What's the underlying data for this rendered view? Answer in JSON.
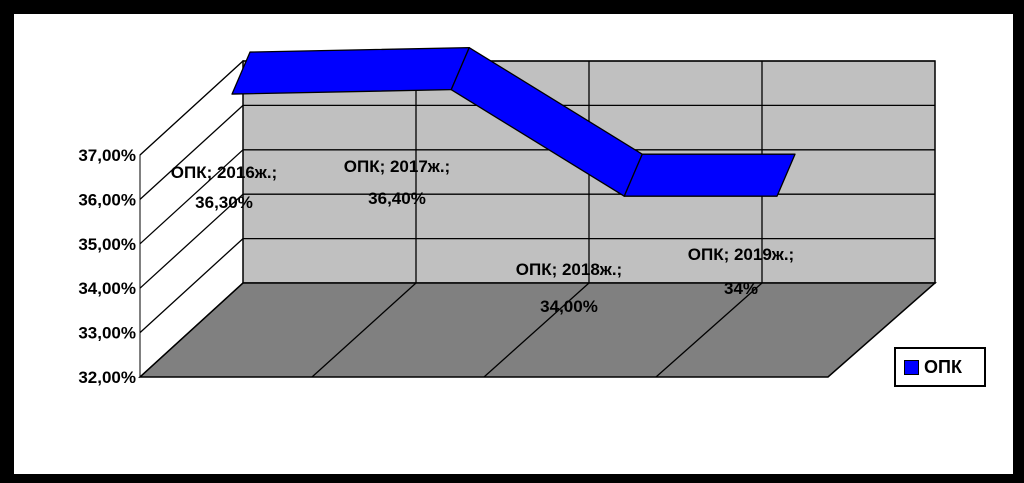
{
  "chart_data": {
    "type": "line",
    "style": "3d-ribbon",
    "categories": [
      "2016ж.",
      "2017ж.",
      "2018ж.",
      "2019ж."
    ],
    "series": [
      {
        "name": "ОПК",
        "values": [
          36.3,
          36.4,
          34.0,
          34.0
        ],
        "color": "#0000ff"
      }
    ],
    "data_labels": [
      {
        "line1": "ОПК; 2016ж.;",
        "line2": "36,30%"
      },
      {
        "line1": "ОПК; 2017ж.;",
        "line2": "36,40%"
      },
      {
        "line1": "ОПК; 2018ж.;",
        "line2": "34,00%"
      },
      {
        "line1": "ОПК; 2019ж.;",
        "line2": "34%"
      }
    ],
    "y_ticks": [
      "32,00%",
      "33,00%",
      "34,00%",
      "35,00%",
      "36,00%",
      "37,00%"
    ],
    "ylim": [
      32,
      37
    ],
    "grid": true,
    "legend_position": "right",
    "legend_label": "ОПК",
    "colors": {
      "series": "#0000ff",
      "walls": "#c0c0c0",
      "floor": "#808080",
      "gridline": "#000000",
      "frame": "#000000"
    }
  }
}
